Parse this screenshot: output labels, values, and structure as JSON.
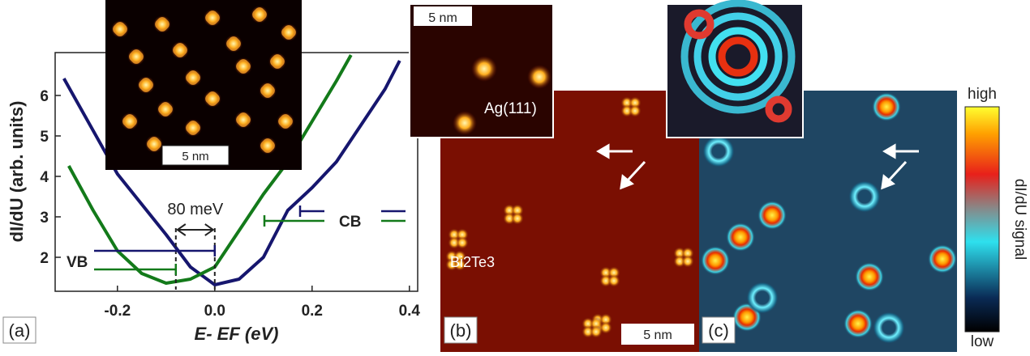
{
  "chart_data": {
    "type": "line",
    "x_label": "E- EF (eV)",
    "y_label": "dI/dU (arb. units)",
    "xlim": [
      -0.328,
      0.417
    ],
    "ylim": [
      1.16,
      7.06
    ],
    "xticks": [
      -0.2,
      {
        "value": 0,
        "label": "0.0"
      },
      0.2,
      0.4
    ],
    "yticks": [
      2,
      3,
      4,
      5,
      6
    ],
    "series": [
      {
        "color": "#16166e",
        "x": [
          -0.31,
          -0.2,
          -0.1,
          -0.05,
          0,
          0.05,
          0.1,
          0.15,
          0.2,
          0.25,
          0.3,
          0.35,
          0.38
        ],
        "values": [
          6.42,
          4.06,
          2.56,
          1.76,
          1.32,
          1.46,
          2.0,
          3.16,
          3.72,
          4.36,
          5.26,
          6.16,
          6.86
        ]
      },
      {
        "color": "#137a1a",
        "x": [
          -0.3,
          -0.25,
          -0.2,
          -0.15,
          -0.1,
          -0.05,
          0,
          0.05,
          0.1,
          0.15,
          0.2,
          0.25,
          0.28
        ],
        "values": [
          4.26,
          3.16,
          2.16,
          1.6,
          1.36,
          1.46,
          1.76,
          2.66,
          3.56,
          4.36,
          5.36,
          6.36,
          7.0
        ]
      }
    ],
    "annotations": {
      "gap": "80 meV",
      "vb": "VB",
      "cb": "CB"
    }
  },
  "labels": {
    "a": "(a)",
    "b": "(b)",
    "c": "(c)",
    "scale_a": "5 nm",
    "scale_ag": "5 nm",
    "scale_b": "5 nm",
    "ag": "Ag(111)",
    "bite": "Bi2Te3",
    "high": "high",
    "low": "low",
    "signal": "dI/dU signal"
  }
}
